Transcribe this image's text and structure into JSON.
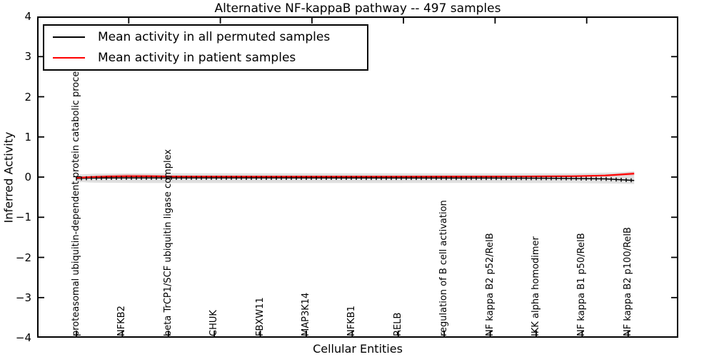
{
  "chart_data": {
    "type": "line",
    "title": "Alternative NF-kappaB pathway -- 497 samples",
    "xlabel": "Cellular Entities",
    "ylabel": "Inferred Activity",
    "ylim": [
      -4,
      4
    ],
    "yticks": [
      4,
      3,
      2,
      1,
      0,
      -1,
      -2,
      -3,
      -4
    ],
    "grid": false,
    "legend_position": "upper-left",
    "categories": [
      "proteasomal ubiquitin-dependent protein catabolic process",
      "NFKB2",
      "beta TrCP1/SCF ubiquitin ligase complex",
      "CHUK",
      "FBXW11",
      "MAP3K14",
      "NFKB1",
      "RELB",
      "regulation of B cell activation",
      "NF kappa B2 p52/RelB",
      "IKK alpha homodimer",
      "NF kappa B1 p50/RelB",
      "NF kappa B2 p100/RelB"
    ],
    "series": [
      {
        "name": "Mean activity in all permuted samples",
        "data_name": "permuted-mean-line",
        "color": "#000000",
        "width": 1.5,
        "marker": "|",
        "points": [
          [
            0,
            -0.035
          ],
          [
            0.3,
            -0.025
          ],
          [
            1,
            -0.02
          ],
          [
            3,
            -0.02
          ],
          [
            6,
            -0.022
          ],
          [
            9,
            -0.025
          ],
          [
            10.5,
            -0.03
          ],
          [
            11.5,
            -0.045
          ],
          [
            12.13,
            -0.085
          ]
        ]
      },
      {
        "name": "Mean activity in patient samples",
        "data_name": "patient-mean-line",
        "color": "#ff0000",
        "width": 2.2,
        "marker": null,
        "points": [
          [
            0,
            -0.018
          ],
          [
            0.3,
            0.0
          ],
          [
            0.7,
            0.015
          ],
          [
            1.1,
            0.022
          ],
          [
            1.6,
            0.02
          ],
          [
            2.2,
            0.014
          ],
          [
            4,
            0.013
          ],
          [
            7,
            0.013
          ],
          [
            9.5,
            0.014
          ],
          [
            10.8,
            0.022
          ],
          [
            11.5,
            0.04
          ],
          [
            12.13,
            0.085
          ]
        ]
      }
    ],
    "bands": [
      {
        "name": "permuted-std-band",
        "color": "#000000",
        "opacity": 0.12,
        "upper": [
          [
            0,
            0.06
          ],
          [
            0.4,
            0.085
          ],
          [
            1.5,
            0.095
          ],
          [
            5,
            0.095
          ],
          [
            9,
            0.09
          ],
          [
            10.8,
            0.095
          ],
          [
            11.7,
            0.115
          ],
          [
            12.13,
            0.14
          ]
        ],
        "lower": [
          [
            0,
            -0.12
          ],
          [
            0.4,
            -0.14
          ],
          [
            1.5,
            -0.15
          ],
          [
            5,
            -0.15
          ],
          [
            9,
            -0.145
          ],
          [
            10.8,
            -0.15
          ],
          [
            11.7,
            -0.16
          ],
          [
            12.13,
            -0.175
          ]
        ]
      },
      {
        "name": "patient-std-halo",
        "color": "#ff0000",
        "opacity": 0.08,
        "upper": [
          [
            0,
            0.0
          ],
          [
            1.1,
            0.04
          ],
          [
            2.2,
            0.03
          ],
          [
            6,
            0.028
          ],
          [
            9.5,
            0.03
          ],
          [
            11,
            0.045
          ],
          [
            12.13,
            0.1
          ]
        ],
        "lower": [
          [
            0,
            -0.035
          ],
          [
            1.1,
            -0.03
          ],
          [
            2.2,
            -0.01
          ],
          [
            6,
            -0.008
          ],
          [
            9.5,
            -0.008
          ],
          [
            11,
            0.0
          ],
          [
            12.13,
            0.065
          ]
        ]
      },
      {
        "name": "patient-std-band-left",
        "color": "#ff0000",
        "opacity": 0.16,
        "upper": [
          [
            0.05,
            -0.005
          ],
          [
            0.4,
            0.035
          ],
          [
            0.8,
            0.06
          ],
          [
            1.1,
            0.072
          ],
          [
            1.5,
            0.06
          ],
          [
            2.1,
            0.035
          ],
          [
            2.7,
            0.018
          ]
        ],
        "lower": [
          [
            0.05,
            -0.03
          ],
          [
            0.8,
            -0.012
          ],
          [
            1.5,
            -0.005
          ],
          [
            2.7,
            0.0
          ]
        ]
      },
      {
        "name": "patient-std-band-right",
        "color": "#ff0000",
        "opacity": 0.16,
        "upper": [
          [
            10.6,
            0.035
          ],
          [
            11.2,
            0.05
          ],
          [
            11.7,
            0.075
          ],
          [
            12.13,
            0.13
          ]
        ],
        "lower": [
          [
            10.6,
            0.005
          ],
          [
            11.2,
            0.01
          ],
          [
            11.7,
            0.02
          ],
          [
            12.13,
            0.045
          ]
        ]
      }
    ]
  }
}
